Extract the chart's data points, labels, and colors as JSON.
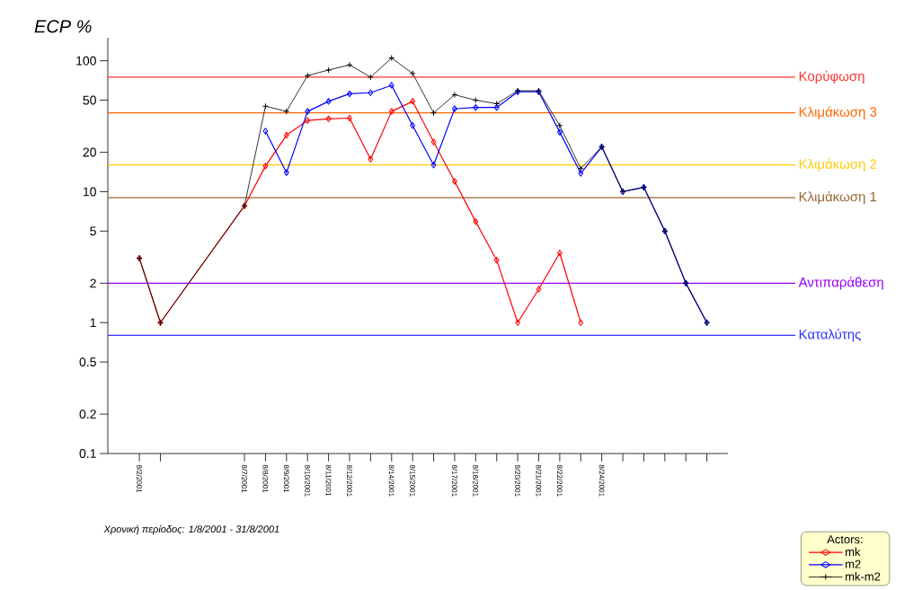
{
  "chart_data": {
    "type": "line",
    "ylabel": "ECP %",
    "legend_title": "Actors:",
    "legend": "bottom right",
    "log": "y",
    "grid": false,
    "xlim": [
      "2001-07-31T12:00",
      "2001-08-30"
    ],
    "ylim": [
      0.1,
      150
    ],
    "yticks": [
      0.1,
      0.2,
      0.5,
      1,
      2,
      5,
      10,
      20,
      50,
      100
    ],
    "xticks": [
      {
        "value": "2001-08-02",
        "label": "8/2/2001"
      },
      {
        "value": "2001-08-03",
        "label": null
      },
      {
        "value": "2001-08-07",
        "label": "8/7/2001"
      },
      {
        "value": "2001-08-08",
        "label": "8/8/2001"
      },
      {
        "value": "2001-08-09",
        "label": "8/9/2001"
      },
      {
        "value": "2001-08-10",
        "label": "8/10/2001"
      },
      {
        "value": "2001-08-11",
        "label": "8/11/2001"
      },
      {
        "value": "2001-08-12",
        "label": "8/12/2001"
      },
      {
        "value": "2001-08-13",
        "label": null
      },
      {
        "value": "2001-08-14",
        "label": "8/14/2001"
      },
      {
        "value": "2001-08-15",
        "label": "8/15/2001"
      },
      {
        "value": "2001-08-16",
        "label": null
      },
      {
        "value": "2001-08-17",
        "label": "8/17/2001"
      },
      {
        "value": "2001-08-18",
        "label": "8/18/2001"
      },
      {
        "value": "2001-08-19",
        "label": null
      },
      {
        "value": "2001-08-20",
        "label": "8/20/2001"
      },
      {
        "value": "2001-08-21",
        "label": "8/21/2001"
      },
      {
        "value": "2001-08-22",
        "label": "8/22/2001"
      },
      {
        "value": "2001-08-23",
        "label": null
      },
      {
        "value": "2001-08-24",
        "label": "8/24/2001"
      },
      {
        "value": "2001-08-25",
        "label": null
      },
      {
        "value": "2001-08-26",
        "label": null
      },
      {
        "value": "2001-08-27",
        "label": null
      },
      {
        "value": "2001-08-28",
        "label": null
      },
      {
        "value": "2001-08-29",
        "label": null
      }
    ],
    "ref_lines": [
      {
        "axis": "y",
        "value": 75,
        "label": "Κορύφωση",
        "color": "#ff3333"
      },
      {
        "axis": "y",
        "value": 40,
        "label": "Κλιμάκωση 3",
        "color": "#ff6600"
      },
      {
        "axis": "y",
        "value": 16,
        "label": "Κλιμάκωση 2",
        "color": "#ffcc00"
      },
      {
        "axis": "y",
        "value": 9,
        "label": "Κλιμάκωση 1",
        "color": "#996633"
      },
      {
        "axis": "y",
        "value": 2,
        "label": "Αντιπαράθεση",
        "color": "#9900ff"
      },
      {
        "axis": "y",
        "value": 0.8,
        "label": "Καταλύτης",
        "color": "#3333ff"
      }
    ],
    "annotations": [
      "Χρονική περίοδος: 1/8/2001 - 31/8/2001"
    ],
    "series": [
      {
        "name": "mk",
        "color": "#ff0000",
        "marker": "diamond",
        "x": [
          "2001-08-02",
          "2001-08-03",
          "2001-08-07",
          "2001-08-08",
          "2001-08-09",
          "2001-08-10",
          "2001-08-11",
          "2001-08-12",
          "2001-08-13",
          "2001-08-14",
          "2001-08-15",
          "2001-08-16",
          "2001-08-17",
          "2001-08-18",
          "2001-08-19",
          "2001-08-20",
          "2001-08-21",
          "2001-08-22",
          "2001-08-23"
        ],
        "values": [
          3.1,
          1.0,
          7.8,
          15.7,
          27,
          35,
          36,
          36.5,
          17.7,
          41,
          49,
          24,
          12,
          5.9,
          3.0,
          1.0,
          1.8,
          3.4,
          1.0
        ]
      },
      {
        "name": "m2",
        "color": "#0000ff",
        "marker": "diamond",
        "x": [
          "2001-08-08",
          "2001-08-09",
          "2001-08-10",
          "2001-08-11",
          "2001-08-12",
          "2001-08-13",
          "2001-08-14",
          "2001-08-15",
          "2001-08-16",
          "2001-08-17",
          "2001-08-18",
          "2001-08-19",
          "2001-08-20",
          "2001-08-21",
          "2001-08-22",
          "2001-08-23",
          "2001-08-24",
          "2001-08-25",
          "2001-08-26",
          "2001-08-27",
          "2001-08-28",
          "2001-08-29"
        ],
        "values": [
          29,
          14,
          41,
          49,
          56,
          57,
          65,
          32,
          16,
          43,
          44,
          44,
          58,
          58,
          28.5,
          13.8,
          22,
          10,
          10.8,
          5.0,
          2.0,
          1.0
        ]
      },
      {
        "name": "mk-m2",
        "color": "#000000",
        "marker": "cross",
        "x": [
          "2001-08-02",
          "2001-08-03",
          "2001-08-07",
          "2001-08-08",
          "2001-08-09",
          "2001-08-10",
          "2001-08-11",
          "2001-08-12",
          "2001-08-13",
          "2001-08-14",
          "2001-08-15",
          "2001-08-16",
          "2001-08-17",
          "2001-08-18",
          "2001-08-19",
          "2001-08-20",
          "2001-08-21",
          "2001-08-22",
          "2001-08-23",
          "2001-08-24",
          "2001-08-25",
          "2001-08-26",
          "2001-08-27",
          "2001-08-28",
          "2001-08-29"
        ],
        "values": [
          3.1,
          1.0,
          7.8,
          45,
          41,
          77,
          85,
          93,
          75,
          105,
          80,
          40,
          55,
          50,
          47,
          59,
          59,
          32,
          15,
          22,
          10,
          10.8,
          5.0,
          2.0,
          1.0
        ]
      }
    ]
  }
}
